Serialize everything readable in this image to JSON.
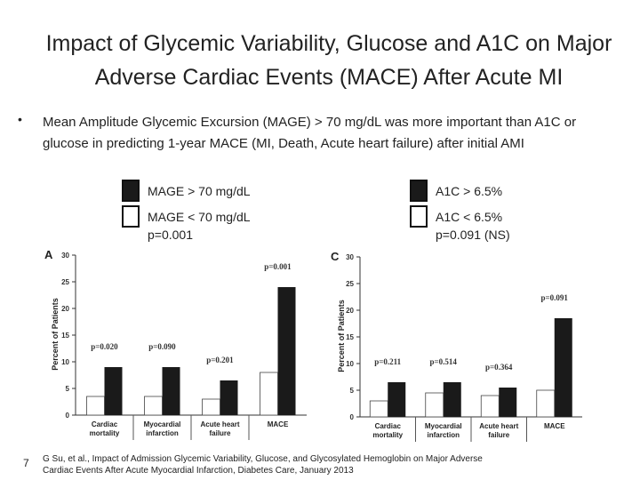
{
  "title": "Impact of Glycemic Variability, Glucose and A1C on Major Adverse Cardiac Events (MACE) After Acute MI",
  "bullet": "Mean Amplitude Glycemic Excursion (MAGE) > 70 mg/dL was more important than A1C or glucose in predicting 1-year MACE (MI, Death, Acute heart failure) after initial AMI",
  "page_number": "7",
  "citation": "G Su, et al., Impact of Admission Glycemic Variability, Glucose, and Glycosylated Hemoglobin on Major Adverse Cardiac Events After Acute Myocardial Infarction, Diabetes Care, January 2013",
  "chart_data": [
    {
      "type": "bar",
      "panel": "A",
      "y_label": "Percent of Patients",
      "summary": "p=0.001",
      "categories": [
        "Cardiac mortality",
        "Myocardial infarction",
        "Acute heart failure",
        "MACE"
      ],
      "series": [
        {
          "name": "MAGE > 70 mg/dL",
          "color": "#1a1a1a",
          "values": [
            9,
            9,
            6.5,
            24
          ]
        },
        {
          "name": "MAGE < 70 mg/dL",
          "color": "#ffffff",
          "values": [
            3.5,
            3.5,
            3,
            8
          ]
        }
      ],
      "annotations": [
        "p=0.020",
        "p=0.090",
        "p=0.201",
        "p=0.001"
      ],
      "ylim": [
        0,
        30
      ],
      "yticks": [
        0,
        5,
        10,
        15,
        20,
        25,
        30
      ]
    },
    {
      "type": "bar",
      "panel": "C",
      "y_label": "Percent of Patients",
      "summary": "p=0.091 (NS)",
      "categories": [
        "Cardiac mortality",
        "Myocardial infarction",
        "Acute heart failure",
        "MACE"
      ],
      "series": [
        {
          "name": "A1C > 6.5%",
          "color": "#1a1a1a",
          "values": [
            6.5,
            6.5,
            5.5,
            18.5
          ]
        },
        {
          "name": "A1C < 6.5%",
          "color": "#ffffff",
          "values": [
            3,
            4.5,
            4,
            5
          ]
        }
      ],
      "annotations": [
        "p=0.211",
        "p=0.514",
        "p=0.364",
        "p=0.091"
      ],
      "ylim": [
        0,
        30
      ],
      "yticks": [
        0,
        5,
        10,
        15,
        20,
        25,
        30
      ]
    }
  ]
}
